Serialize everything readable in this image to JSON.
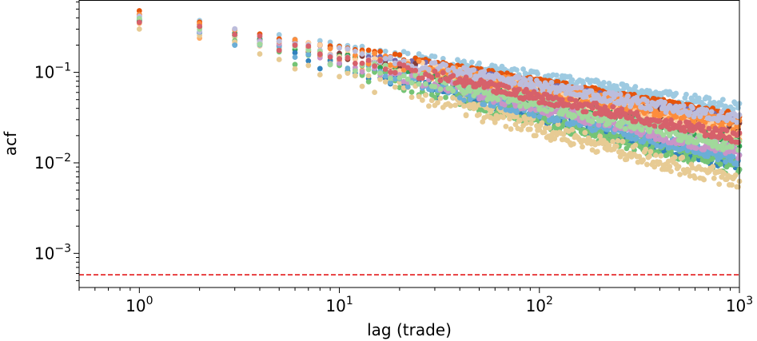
{
  "chart_data": {
    "type": "scatter",
    "xlabel": "lag (trade)",
    "ylabel": "acf",
    "xscale": "log",
    "yscale": "log",
    "xlim": [
      0.5,
      1000
    ],
    "ylim": [
      0.00042,
      0.63
    ],
    "grid": false,
    "legend": "none",
    "x_ticks": [
      {
        "value": 1,
        "base": "10",
        "exp": "0"
      },
      {
        "value": 10,
        "base": "10",
        "exp": "1"
      },
      {
        "value": 100,
        "base": "10",
        "exp": "2"
      },
      {
        "value": 1000,
        "base": "10",
        "exp": "3"
      }
    ],
    "y_ticks": [
      {
        "value": 0.001,
        "base": "10",
        "exp": "−3"
      },
      {
        "value": 0.01,
        "base": "10",
        "exp": "−2"
      },
      {
        "value": 0.1,
        "base": "10",
        "exp": "−1"
      }
    ],
    "reference_line": {
      "y": 0.00058,
      "color": "#e41a1c",
      "style": "dashed"
    },
    "series": [
      {
        "color": "#9ecae1",
        "acf_lag1": 0.42,
        "acf_lag1000": 0.041,
        "noise": 0.06
      },
      {
        "color": "#e6550d",
        "acf_lag1": 0.44,
        "acf_lag1000": 0.033,
        "noise": 0.04
      },
      {
        "color": "#756bb1",
        "acf_lag1": 0.4,
        "acf_lag1000": 0.028,
        "noise": 0.06
      },
      {
        "color": "#843c39",
        "acf_lag1": 0.41,
        "acf_lag1000": 0.024,
        "noise": 0.06
      },
      {
        "color": "#fdae6b",
        "acf_lag1": 0.38,
        "acf_lag1000": 0.02,
        "noise": 0.08
      },
      {
        "color": "#31a354",
        "acf_lag1": 0.42,
        "acf_lag1000": 0.017,
        "noise": 0.05
      },
      {
        "color": "#fdd0a2",
        "acf_lag1": 0.43,
        "acf_lag1000": 0.022,
        "noise": 0.09
      },
      {
        "color": "#3182bd",
        "acf_lag1": 0.39,
        "acf_lag1000": 0.0095,
        "noise": 0.07
      },
      {
        "color": "#74c476",
        "acf_lag1": 0.4,
        "acf_lag1000": 0.0085,
        "noise": 0.09
      },
      {
        "color": "#e7cb94",
        "acf_lag1": 0.37,
        "acf_lag1000": 0.0062,
        "noise": 0.1
      },
      {
        "color": "#6baed6",
        "acf_lag1": 0.41,
        "acf_lag1000": 0.011,
        "noise": 0.07
      },
      {
        "color": "#c994c7",
        "acf_lag1": 0.43,
        "acf_lag1000": 0.013,
        "noise": 0.07
      },
      {
        "color": "#fd8d3c",
        "acf_lag1": 0.42,
        "acf_lag1000": 0.026,
        "noise": 0.07
      },
      {
        "color": "#bcbddc",
        "acf_lag1": 0.4,
        "acf_lag1000": 0.03,
        "noise": 0.06
      },
      {
        "color": "#a1d99b",
        "acf_lag1": 0.39,
        "acf_lag1000": 0.015,
        "noise": 0.07
      },
      {
        "color": "#d6616b",
        "acf_lag1": 0.41,
        "acf_lag1000": 0.019,
        "noise": 0.06
      }
    ]
  }
}
